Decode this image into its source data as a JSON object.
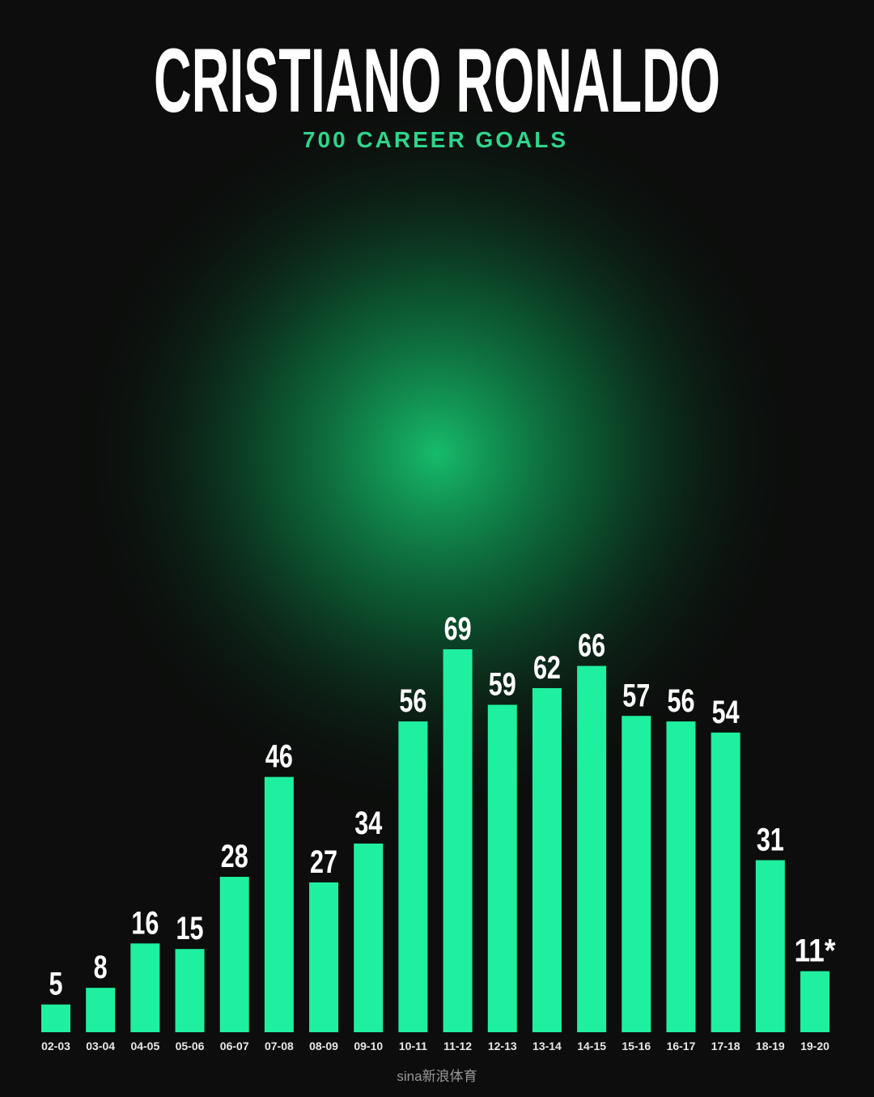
{
  "chart_data": {
    "type": "bar",
    "title": "CRISTIANO RONALDO",
    "subtitle": "700 CAREER GOALS",
    "categories": [
      "02-03",
      "03-04",
      "04-05",
      "05-06",
      "06-07",
      "07-08",
      "08-09",
      "09-10",
      "10-11",
      "11-12",
      "12-13",
      "13-14",
      "14-15",
      "15-16",
      "16-17",
      "17-18",
      "18-19",
      "19-20"
    ],
    "values": [
      5,
      8,
      16,
      15,
      28,
      46,
      27,
      34,
      56,
      69,
      59,
      62,
      66,
      57,
      56,
      54,
      31,
      11
    ],
    "value_labels": [
      "5",
      "8",
      "16",
      "15",
      "28",
      "46",
      "27",
      "34",
      "56",
      "69",
      "59",
      "62",
      "66",
      "57",
      "56",
      "54",
      "31",
      "11*"
    ],
    "color": "#1ff0a0",
    "title_color": "#ffffff",
    "subtitle_color": "#2fd58c",
    "watermark": "sina新浪体育"
  }
}
